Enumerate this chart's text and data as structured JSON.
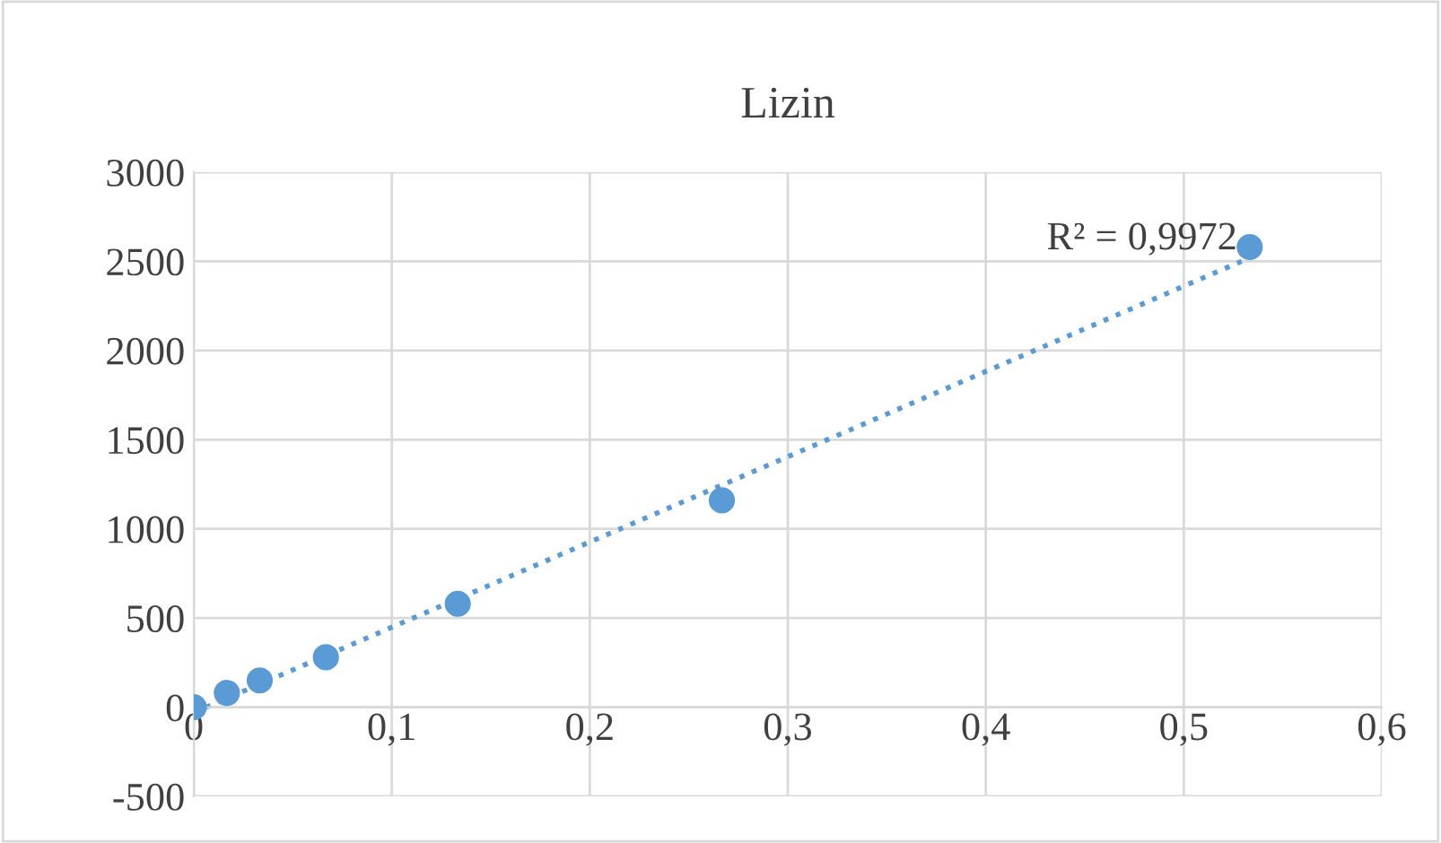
{
  "chart_data": {
    "type": "scatter",
    "title": "Lizin",
    "series": [
      {
        "color": "#5b9bd5",
        "marker": "circle",
        "x": [
          0,
          0.0167,
          0.0333,
          0.0667,
          0.1333,
          0.2667,
          0.5333
        ],
        "values": [
          0,
          80,
          150,
          280,
          580,
          1160,
          2580
        ]
      },
      {
        "type": "line",
        "color": "#5b9bd5",
        "marker": "none",
        "line_style": "dotted",
        "x": [
          0,
          0.5333
        ],
        "values": [
          -30,
          2520
        ]
      }
    ],
    "xlim": [
      0,
      0.6
    ],
    "xticks": [
      0,
      {
        "value": 0.1,
        "label": "0,1"
      },
      {
        "value": 0.2,
        "label": "0,2"
      },
      {
        "value": 0.3,
        "label": "0,3"
      },
      {
        "value": 0.4,
        "label": "0,4"
      },
      {
        "value": 0.5,
        "label": "0,5"
      },
      {
        "value": 0.6,
        "label": "0,6"
      }
    ],
    "ylim": [
      -500,
      3000
    ],
    "yticks": [
      -500,
      0,
      500,
      1000,
      1500,
      2000,
      2500,
      3000
    ],
    "grid": true,
    "annotations": [
      {
        "text": "R² = 0,9972",
        "x": 0.5333,
        "y": 2520
      }
    ]
  }
}
